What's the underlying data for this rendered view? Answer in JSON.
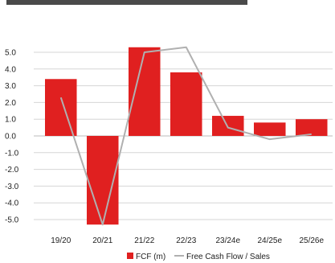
{
  "chart_data": {
    "type": "bar",
    "title": "",
    "xlabel": "",
    "ylabel": "",
    "categories": [
      "19/20",
      "20/21",
      "21/22",
      "22/23",
      "23/24e",
      "24/25e",
      "25/26e"
    ],
    "ylim": [
      -5.5,
      5.5
    ],
    "yticks": [
      5.0,
      4.0,
      3.0,
      2.0,
      1.0,
      0.0,
      -1.0,
      -2.0,
      -3.0,
      -4.0,
      -5.0
    ],
    "grid": true,
    "legend_position": "bottom",
    "series": [
      {
        "name": "FCF (m)",
        "kind": "bar",
        "color": "#e02020",
        "values": [
          3.4,
          -5.3,
          5.3,
          3.8,
          1.2,
          0.8,
          1.0
        ]
      },
      {
        "name": "Free Cash Flow / Sales",
        "kind": "line",
        "color": "#b0b0b0",
        "values": [
          2.3,
          -5.3,
          5.0,
          5.3,
          0.5,
          -0.2,
          0.1
        ]
      }
    ]
  }
}
